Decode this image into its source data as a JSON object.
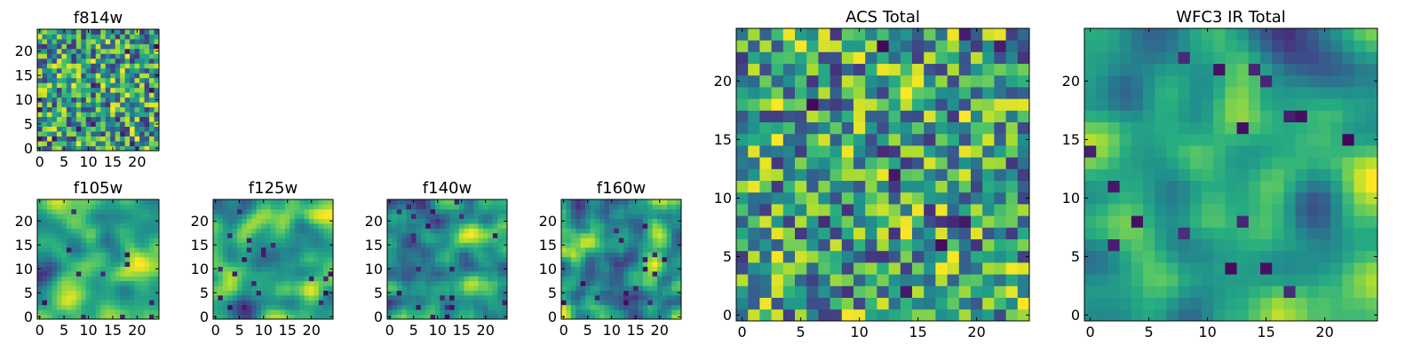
{
  "chart_data": [
    {
      "type": "heatmap",
      "title": "f814w",
      "colormap": "viridis",
      "grid_size": 25,
      "seed": 814,
      "smoothness": 0,
      "xlim": [
        0,
        25
      ],
      "ylim": [
        0,
        25
      ],
      "xticks": [
        0,
        5,
        10,
        15,
        20
      ],
      "yticks": [
        0,
        5,
        10,
        15,
        20
      ]
    },
    {
      "type": "heatmap",
      "title": "f105w",
      "colormap": "viridis",
      "grid_size": 25,
      "seed": 105,
      "smoothness": 3,
      "xlim": [
        0,
        25
      ],
      "ylim": [
        0,
        25
      ],
      "xticks": [
        0,
        5,
        10,
        15,
        20
      ],
      "yticks": [
        0,
        5,
        10,
        15,
        20
      ]
    },
    {
      "type": "heatmap",
      "title": "f125w",
      "colormap": "viridis",
      "grid_size": 25,
      "seed": 125,
      "smoothness": 3,
      "xlim": [
        0,
        25
      ],
      "ylim": [
        0,
        25
      ],
      "xticks": [
        0,
        5,
        10,
        15,
        20
      ],
      "yticks": [
        0,
        5,
        10,
        15,
        20
      ]
    },
    {
      "type": "heatmap",
      "title": "f140w",
      "colormap": "viridis",
      "grid_size": 25,
      "seed": 140,
      "smoothness": 2,
      "xlim": [
        0,
        25
      ],
      "ylim": [
        0,
        25
      ],
      "xticks": [
        0,
        5,
        10,
        15,
        20
      ],
      "yticks": [
        0,
        5,
        10,
        15,
        20
      ]
    },
    {
      "type": "heatmap",
      "title": "f160w",
      "colormap": "viridis",
      "grid_size": 25,
      "seed": 160,
      "smoothness": 2,
      "xlim": [
        0,
        25
      ],
      "ylim": [
        0,
        25
      ],
      "xticks": [
        0,
        5,
        10,
        15,
        20
      ],
      "yticks": [
        0,
        5,
        10,
        15,
        20
      ]
    },
    {
      "type": "heatmap",
      "title": "ACS Total",
      "colormap": "viridis",
      "grid_size": 25,
      "seed": 7,
      "smoothness": 0,
      "xlim": [
        0,
        25
      ],
      "ylim": [
        0,
        25
      ],
      "xticks": [
        0,
        5,
        10,
        15,
        20
      ],
      "yticks": [
        0,
        5,
        10,
        15,
        20
      ]
    },
    {
      "type": "heatmap",
      "title": "WFC3 IR Total",
      "colormap": "viridis",
      "grid_size": 25,
      "seed": 31,
      "smoothness": 3,
      "xlim": [
        0,
        25
      ],
      "ylim": [
        0,
        25
      ],
      "xticks": [
        0,
        5,
        10,
        15,
        20
      ],
      "yticks": [
        0,
        5,
        10,
        15,
        20
      ]
    }
  ]
}
